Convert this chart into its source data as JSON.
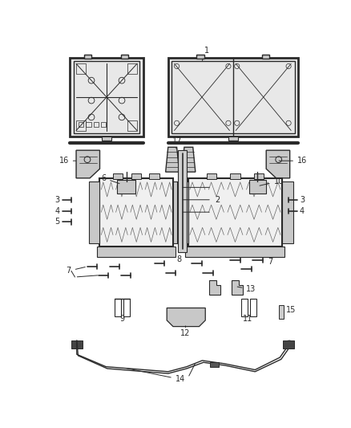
{
  "bg_color": "#ffffff",
  "line_color": "#2a2a2a",
  "gray_fill": "#c8c8c8",
  "dark_fill": "#888888",
  "light_fill": "#e8e8e8",
  "figw": 4.38,
  "figh": 5.33,
  "dpi": 100
}
